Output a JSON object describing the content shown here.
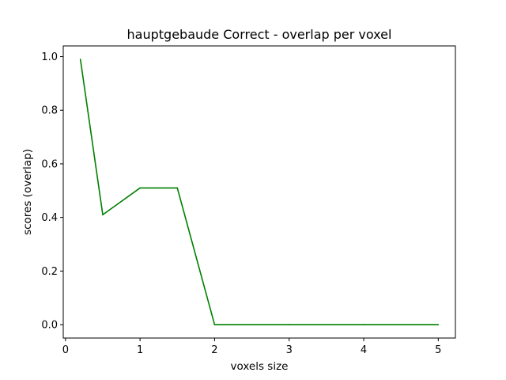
{
  "chart_data": {
    "type": "line",
    "title": "hauptgebaude Correct - overlap per voxel",
    "xlabel": "voxels size",
    "ylabel": "scores (overlap)",
    "xlim": [
      -0.03,
      5.23
    ],
    "ylim": [
      -0.05,
      1.04
    ],
    "xticks": [
      0,
      1,
      2,
      3,
      4,
      5
    ],
    "xtick_labels": [
      "0",
      "1",
      "2",
      "3",
      "4",
      "5"
    ],
    "yticks": [
      0.0,
      0.2,
      0.4,
      0.6,
      0.8,
      1.0
    ],
    "ytick_labels": [
      "0.0",
      "0.2",
      "0.4",
      "0.6",
      "0.8",
      "1.0"
    ],
    "grid": false,
    "legend": "none",
    "series": [
      {
        "color": "#008000",
        "x": [
          0.2,
          0.5,
          1.0,
          1.5,
          2.0,
          3.0,
          4.0,
          5.0
        ],
        "y": [
          0.99,
          0.41,
          0.51,
          0.51,
          0.0,
          0.0,
          0.0,
          0.0
        ]
      }
    ]
  }
}
